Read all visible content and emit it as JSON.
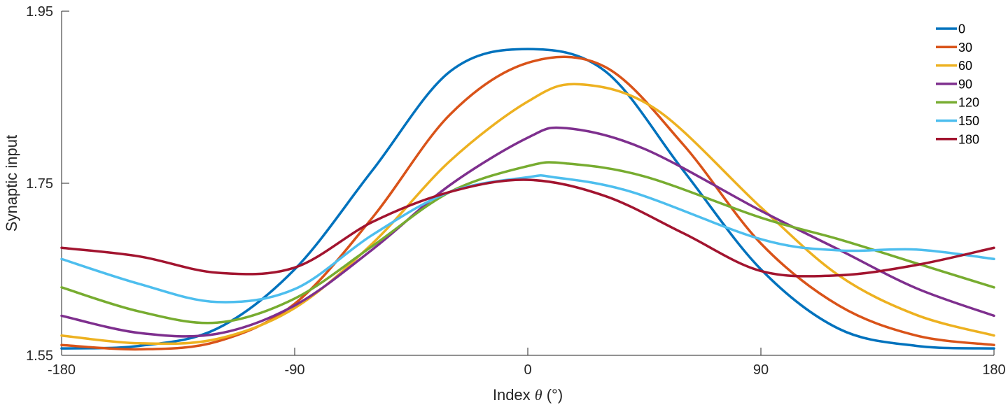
{
  "chart_data": {
    "type": "line",
    "title": "",
    "xlabel_prefix": "Index ",
    "xlabel_symbol": "θ",
    "xlabel_suffix": " (°)",
    "ylabel": "Synaptic input",
    "xlim": [
      -180,
      180
    ],
    "ylim": [
      1.55,
      1.95
    ],
    "x_ticks": [
      -180,
      -90,
      0,
      90,
      180
    ],
    "x_tick_labels": [
      "-180",
      "-90",
      "0",
      "90",
      "180"
    ],
    "y_ticks": [
      1.55,
      1.75,
      1.95
    ],
    "y_tick_labels": [
      "1.55",
      "1.75",
      "1.95"
    ],
    "grid": false,
    "legend_position": "top-right",
    "series": [
      {
        "name": "0",
        "color": "#0072BD",
        "points": [
          [
            -180,
            1.558
          ],
          [
            -150,
            1.561
          ],
          [
            -120,
            1.581
          ],
          [
            -90,
            1.65
          ],
          [
            -60,
            1.765
          ],
          [
            -30,
            1.88
          ],
          [
            0,
            1.906
          ],
          [
            30,
            1.88
          ],
          [
            60,
            1.765
          ],
          [
            90,
            1.65
          ],
          [
            120,
            1.581
          ],
          [
            150,
            1.561
          ],
          [
            180,
            1.558
          ]
        ]
      },
      {
        "name": "30",
        "color": "#D95319",
        "points": [
          [
            -180,
            1.562
          ],
          [
            -150,
            1.557
          ],
          [
            -120,
            1.566
          ],
          [
            -90,
            1.61
          ],
          [
            -60,
            1.71
          ],
          [
            -30,
            1.83
          ],
          [
            0,
            1.89
          ],
          [
            30,
            1.885
          ],
          [
            60,
            1.795
          ],
          [
            90,
            1.68
          ],
          [
            120,
            1.608
          ],
          [
            150,
            1.573
          ],
          [
            180,
            1.562
          ]
        ]
      },
      {
        "name": "60",
        "color": "#EDB120",
        "points": [
          [
            -180,
            1.573
          ],
          [
            -150,
            1.564
          ],
          [
            -120,
            1.569
          ],
          [
            -90,
            1.605
          ],
          [
            -60,
            1.68
          ],
          [
            -30,
            1.776
          ],
          [
            0,
            1.845
          ],
          [
            20,
            1.865
          ],
          [
            50,
            1.835
          ],
          [
            90,
            1.722
          ],
          [
            120,
            1.643
          ],
          [
            150,
            1.597
          ],
          [
            180,
            1.573
          ]
        ]
      },
      {
        "name": "90",
        "color": "#7E2F8E",
        "points": [
          [
            -180,
            1.596
          ],
          [
            -150,
            1.576
          ],
          [
            -120,
            1.575
          ],
          [
            -90,
            1.608
          ],
          [
            -60,
            1.673
          ],
          [
            -30,
            1.748
          ],
          [
            0,
            1.803
          ],
          [
            15,
            1.814
          ],
          [
            45,
            1.79
          ],
          [
            90,
            1.718
          ],
          [
            120,
            1.673
          ],
          [
            150,
            1.628
          ],
          [
            180,
            1.596
          ]
        ]
      },
      {
        "name": "120",
        "color": "#77AC30",
        "points": [
          [
            -180,
            1.629
          ],
          [
            -150,
            1.601
          ],
          [
            -120,
            1.588
          ],
          [
            -90,
            1.616
          ],
          [
            -60,
            1.677
          ],
          [
            -30,
            1.74
          ],
          [
            0,
            1.77
          ],
          [
            15,
            1.773
          ],
          [
            45,
            1.758
          ],
          [
            90,
            1.71
          ],
          [
            120,
            1.685
          ],
          [
            150,
            1.657
          ],
          [
            180,
            1.629
          ]
        ]
      },
      {
        "name": "150",
        "color": "#4DBEEE",
        "points": [
          [
            -180,
            1.662
          ],
          [
            -150,
            1.633
          ],
          [
            -120,
            1.612
          ],
          [
            -90,
            1.627
          ],
          [
            -60,
            1.69
          ],
          [
            -30,
            1.74
          ],
          [
            0,
            1.757
          ],
          [
            10,
            1.757
          ],
          [
            40,
            1.74
          ],
          [
            90,
            1.685
          ],
          [
            120,
            1.672
          ],
          [
            150,
            1.673
          ],
          [
            180,
            1.662
          ]
        ]
      },
      {
        "name": "180",
        "color": "#A2142F",
        "points": [
          [
            -180,
            1.675
          ],
          [
            -150,
            1.665
          ],
          [
            -120,
            1.646
          ],
          [
            -90,
            1.652
          ],
          [
            -60,
            1.705
          ],
          [
            -30,
            1.74
          ],
          [
            0,
            1.754
          ],
          [
            30,
            1.735
          ],
          [
            60,
            1.692
          ],
          [
            90,
            1.648
          ],
          [
            120,
            1.643
          ],
          [
            150,
            1.655
          ],
          [
            180,
            1.675
          ]
        ]
      }
    ]
  }
}
